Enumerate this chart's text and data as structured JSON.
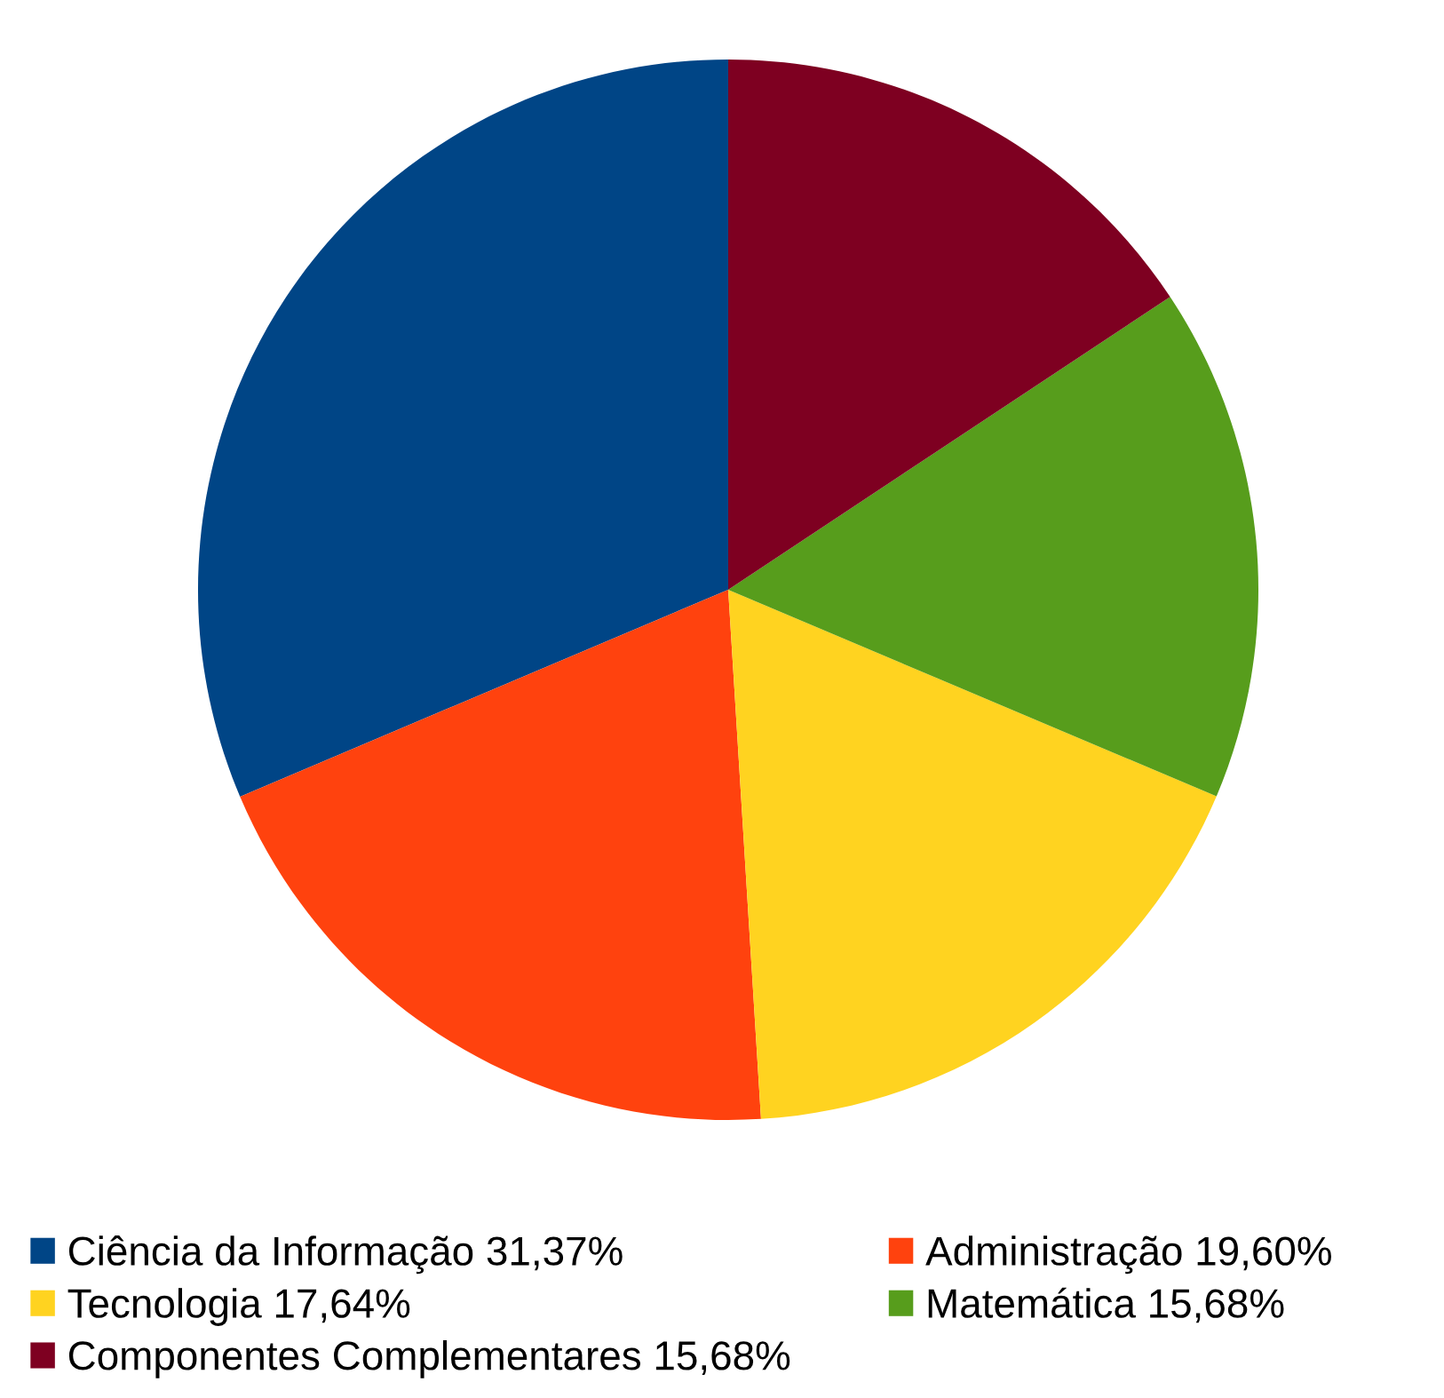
{
  "chart_data": {
    "type": "pie",
    "categories": [
      "Ciência da Informação 31,37%",
      "Administração 19,60%",
      "Tecnologia 17,64%",
      "Matemática 15,68%",
      "Componentes Complementares 15,68%"
    ],
    "values": [
      31.37,
      19.6,
      17.64,
      15.68,
      15.68
    ],
    "colors": [
      "#004586",
      "#ff420e",
      "#ffd320",
      "#579d1c",
      "#7e0021"
    ],
    "legend": "bottom"
  }
}
